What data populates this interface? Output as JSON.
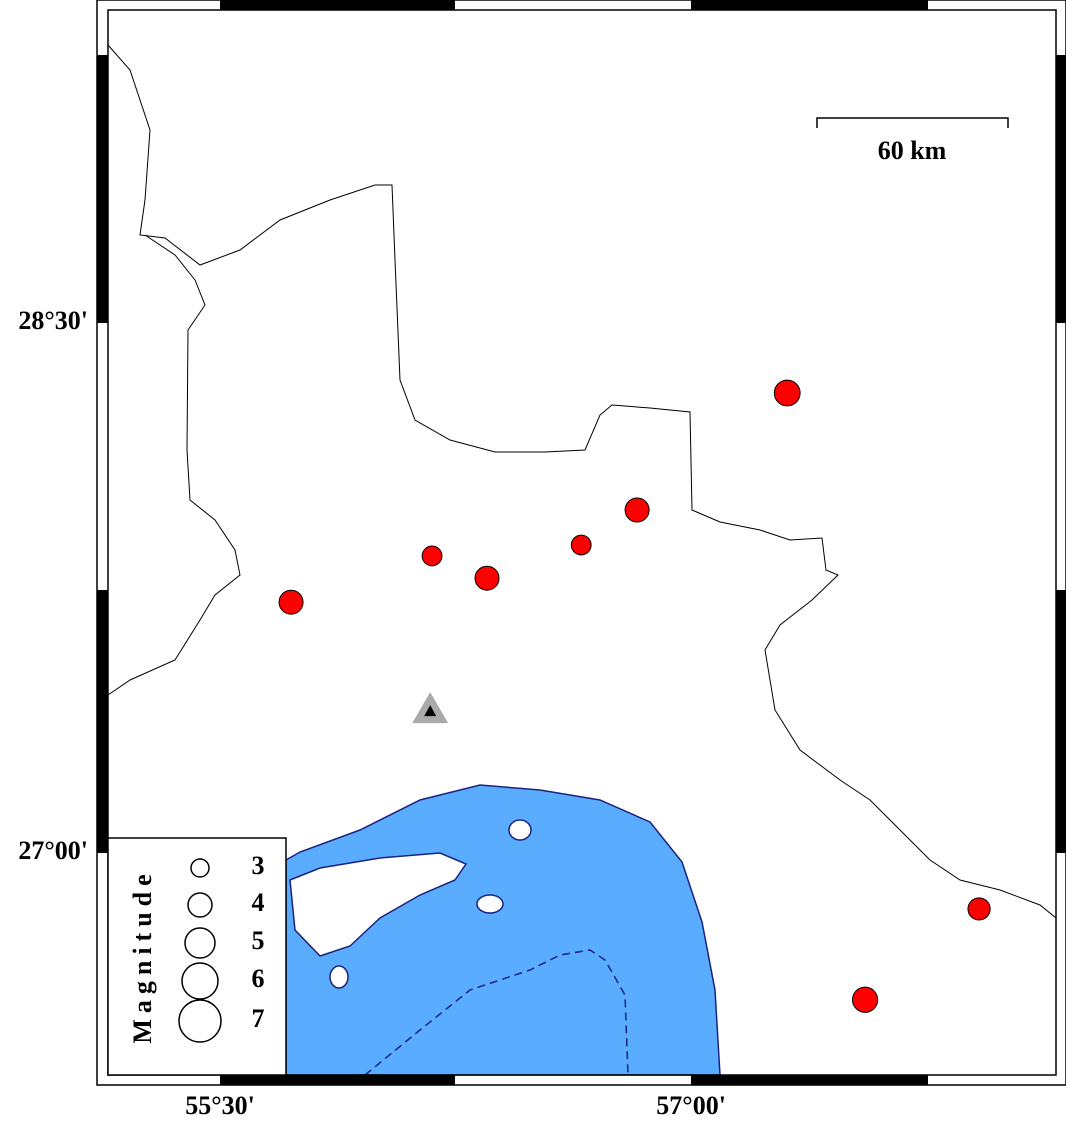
{
  "map": {
    "xlim": [
      55.143,
      58.162
    ],
    "ylim": [
      26.372,
      29.386
    ],
    "xticks": [
      {
        "value": 55.5,
        "label": "55°30'"
      },
      {
        "value": 57,
        "label": "57°00'"
      }
    ],
    "yticks": [
      {
        "value": 27,
        "label": "27°00'"
      },
      {
        "value": 28.5,
        "label": "28°30'"
      }
    ],
    "scale_label": "60 km",
    "event_color": "#ff0000",
    "events": [
      {
        "lon": 57.306,
        "lat": 28.302,
        "mag": 4.3
      },
      {
        "lon": 56.828,
        "lat": 27.971,
        "mag": 4.0
      },
      {
        "lon": 56.65,
        "lat": 27.872,
        "mag": 3.3
      },
      {
        "lon": 56.175,
        "lat": 27.841,
        "mag": 3.3
      },
      {
        "lon": 56.35,
        "lat": 27.778,
        "mag": 4.0
      },
      {
        "lon": 55.726,
        "lat": 27.71,
        "mag": 4.0
      },
      {
        "lon": 57.917,
        "lat": 26.842,
        "mag": 3.7
      },
      {
        "lon": 57.554,
        "lat": 26.585,
        "mag": 4.2
      }
    ],
    "station": {
      "lon": 56.169,
      "lat": 27.399
    },
    "legend": {
      "title": "Magnitude",
      "magnitudes": [
        3,
        4,
        5,
        6,
        7
      ]
    }
  }
}
